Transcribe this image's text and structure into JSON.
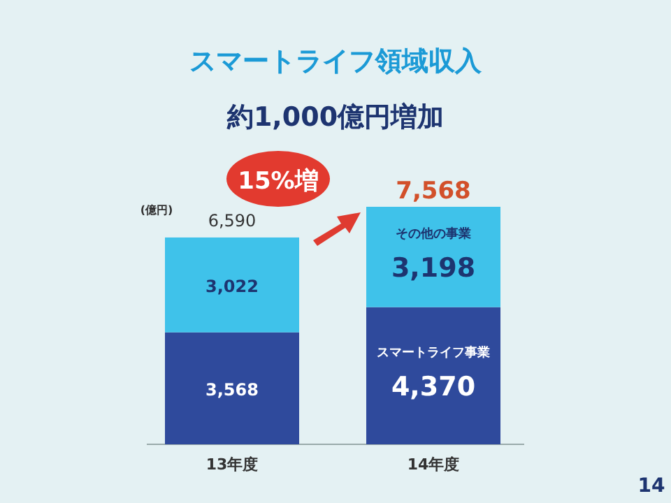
{
  "chart_data": {
    "type": "bar",
    "stacked": true,
    "title": "スマートライフ領域収入",
    "subtitle": "約1,000億円増加",
    "ylabel": "(億円)",
    "categories": [
      "13年度",
      "14年度"
    ],
    "series": [
      {
        "name": "スマートライフ事業",
        "color": "#2f4a9c",
        "values": [
          3568,
          4370
        ],
        "value_labels": [
          "3,568",
          "4,370"
        ]
      },
      {
        "name": "その他の事業",
        "color": "#3fc2ea",
        "values": [
          3022,
          3198
        ],
        "value_labels": [
          "3,022",
          "3,198"
        ]
      }
    ],
    "totals": [
      "6,590",
      "7,568"
    ],
    "annotations": [
      "15%増",
      "14"
    ]
  }
}
